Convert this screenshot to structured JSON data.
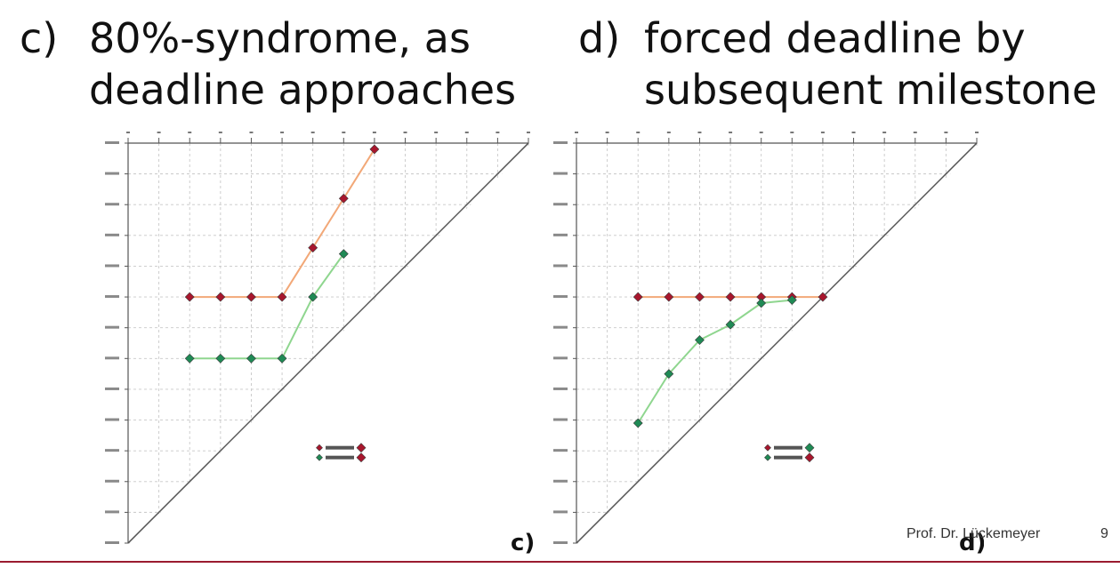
{
  "slide": {
    "heading_c": {
      "letter": "c)",
      "line1": "80%-syndrome, as",
      "line2": "deadline approaches"
    },
    "heading_d": {
      "letter": "d)",
      "line1": "forced deadline by",
      "line2": "subsequent milestone"
    },
    "footer": {
      "author": "Prof. Dr. Lückemeyer",
      "page": "9"
    },
    "accent_color": "#9a1b2f"
  },
  "chart_data": [
    {
      "type": "line",
      "subtype": "milestone-trend-analysis",
      "panel_label": "c)",
      "x": [
        1,
        2,
        3,
        4,
        5,
        6,
        7,
        8,
        9,
        10,
        11,
        12,
        13,
        14
      ],
      "ylim": [
        1,
        14
      ],
      "grid": true,
      "diagonal": true,
      "legend_position": "center-bottom",
      "series": [
        {
          "color": "#a8162d",
          "line_color": "#f2a878",
          "points": [
            [
              3,
              9
            ],
            [
              4,
              9
            ],
            [
              5,
              9
            ],
            [
              6,
              9
            ],
            [
              7,
              10.6
            ],
            [
              8,
              12.2
            ],
            [
              9,
              13.8
            ]
          ]
        },
        {
          "color": "#1f8a55",
          "line_color": "#8fd68f",
          "points": [
            [
              3,
              7
            ],
            [
              4,
              7
            ],
            [
              5,
              7
            ],
            [
              6,
              7
            ],
            [
              7,
              9
            ],
            [
              8,
              10.4
            ]
          ]
        }
      ]
    },
    {
      "type": "line",
      "subtype": "milestone-trend-analysis",
      "panel_label": "d)",
      "x": [
        1,
        2,
        3,
        4,
        5,
        6,
        7,
        8,
        9,
        10,
        11,
        12,
        13,
        14
      ],
      "ylim": [
        1,
        14
      ],
      "grid": true,
      "diagonal": true,
      "legend_position": "center-bottom",
      "series": [
        {
          "color": "#a8162d",
          "line_color": "#f2a878",
          "points": [
            [
              3,
              9
            ],
            [
              4,
              9
            ],
            [
              5,
              9
            ],
            [
              6,
              9
            ],
            [
              7,
              9
            ],
            [
              8,
              9
            ],
            [
              9,
              9
            ]
          ]
        },
        {
          "color": "#1f8a55",
          "line_color": "#8fd68f",
          "points": [
            [
              3,
              4.9
            ],
            [
              4,
              6.5
            ],
            [
              5,
              7.6
            ],
            [
              6,
              8.1
            ],
            [
              7,
              8.8
            ],
            [
              8,
              8.9
            ]
          ]
        }
      ]
    }
  ]
}
